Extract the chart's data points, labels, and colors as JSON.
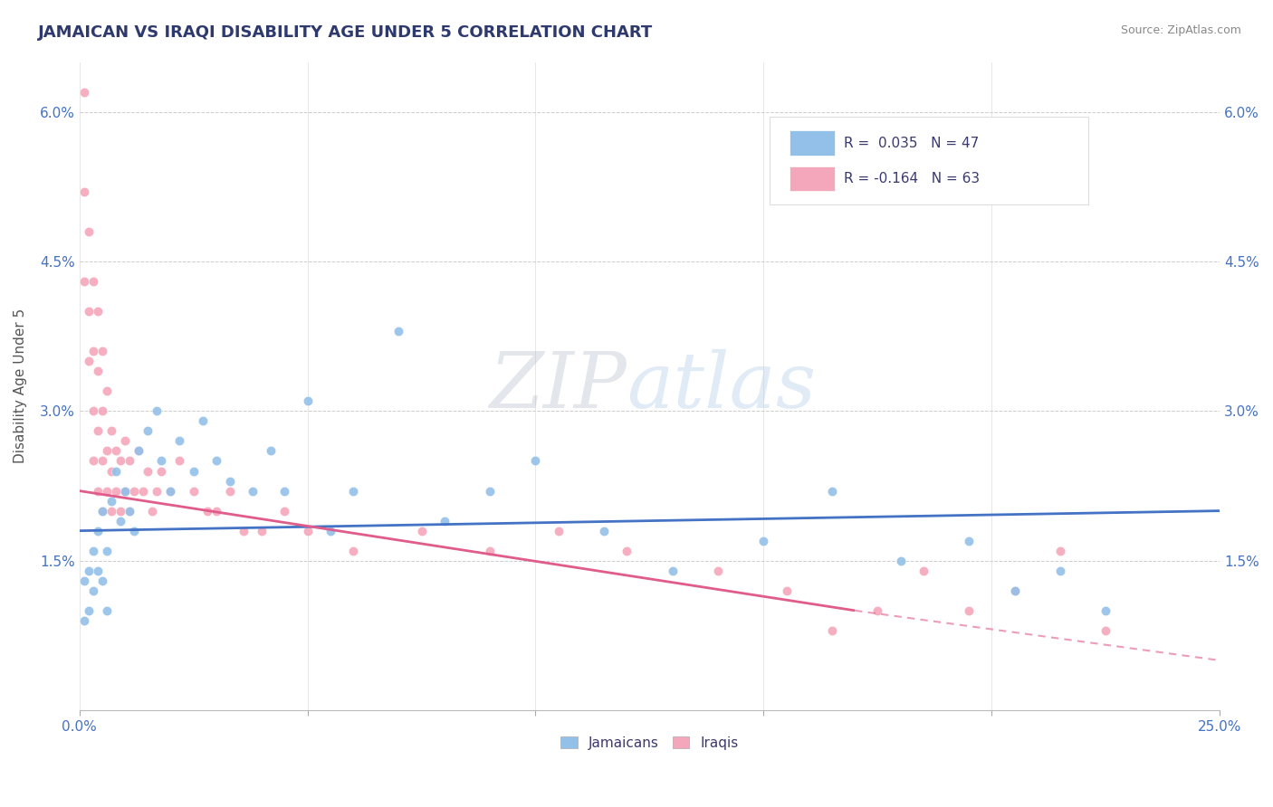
{
  "title": "JAMAICAN VS IRAQI DISABILITY AGE UNDER 5 CORRELATION CHART",
  "source": "Source: ZipAtlas.com",
  "ylabel": "Disability Age Under 5",
  "xmin": 0.0,
  "xmax": 0.25,
  "ymin": 0.0,
  "ymax": 0.065,
  "yticks": [
    0.0,
    0.015,
    0.03,
    0.045,
    0.06
  ],
  "ytick_labels": [
    "",
    "1.5%",
    "3.0%",
    "4.5%",
    "6.0%"
  ],
  "xticks": [
    0.0,
    0.05,
    0.1,
    0.15,
    0.2,
    0.25
  ],
  "legend_r_jamaican": "0.035",
  "legend_n_jamaican": "47",
  "legend_r_iraqi": "-0.164",
  "legend_n_iraqi": "63",
  "jamaican_color": "#92c0e8",
  "iraqi_color": "#f4a6bb",
  "trendline_jamaican_color": "#4472c4",
  "trendline_iraqi_color": "#e05c8a",
  "watermark_zip": "ZIP",
  "watermark_atlas": "atlas",
  "background_color": "#ffffff",
  "jamaicans_x": [
    0.001,
    0.001,
    0.002,
    0.002,
    0.003,
    0.003,
    0.004,
    0.004,
    0.005,
    0.005,
    0.006,
    0.006,
    0.007,
    0.008,
    0.009,
    0.01,
    0.011,
    0.012,
    0.013,
    0.015,
    0.017,
    0.018,
    0.02,
    0.022,
    0.025,
    0.027,
    0.03,
    0.033,
    0.038,
    0.042,
    0.045,
    0.05,
    0.055,
    0.06,
    0.07,
    0.08,
    0.09,
    0.1,
    0.115,
    0.13,
    0.15,
    0.165,
    0.18,
    0.195,
    0.205,
    0.215,
    0.225
  ],
  "jamaicans_y": [
    0.013,
    0.009,
    0.014,
    0.01,
    0.016,
    0.012,
    0.018,
    0.014,
    0.02,
    0.013,
    0.016,
    0.01,
    0.021,
    0.024,
    0.019,
    0.022,
    0.02,
    0.018,
    0.026,
    0.028,
    0.03,
    0.025,
    0.022,
    0.027,
    0.024,
    0.029,
    0.025,
    0.023,
    0.022,
    0.026,
    0.022,
    0.031,
    0.018,
    0.022,
    0.038,
    0.019,
    0.022,
    0.025,
    0.018,
    0.014,
    0.017,
    0.022,
    0.015,
    0.017,
    0.012,
    0.014,
    0.01
  ],
  "iraqis_x": [
    0.001,
    0.001,
    0.001,
    0.002,
    0.002,
    0.002,
    0.003,
    0.003,
    0.003,
    0.003,
    0.004,
    0.004,
    0.004,
    0.004,
    0.005,
    0.005,
    0.005,
    0.005,
    0.006,
    0.006,
    0.006,
    0.007,
    0.007,
    0.007,
    0.008,
    0.008,
    0.009,
    0.009,
    0.01,
    0.01,
    0.011,
    0.011,
    0.012,
    0.013,
    0.014,
    0.015,
    0.016,
    0.017,
    0.018,
    0.02,
    0.022,
    0.025,
    0.028,
    0.03,
    0.033,
    0.036,
    0.04,
    0.045,
    0.05,
    0.06,
    0.075,
    0.09,
    0.105,
    0.12,
    0.14,
    0.155,
    0.165,
    0.175,
    0.185,
    0.195,
    0.205,
    0.215,
    0.225
  ],
  "iraqis_y": [
    0.062,
    0.052,
    0.043,
    0.048,
    0.04,
    0.035,
    0.043,
    0.036,
    0.03,
    0.025,
    0.04,
    0.034,
    0.028,
    0.022,
    0.036,
    0.03,
    0.025,
    0.02,
    0.032,
    0.026,
    0.022,
    0.028,
    0.024,
    0.02,
    0.026,
    0.022,
    0.025,
    0.02,
    0.027,
    0.022,
    0.025,
    0.02,
    0.022,
    0.026,
    0.022,
    0.024,
    0.02,
    0.022,
    0.024,
    0.022,
    0.025,
    0.022,
    0.02,
    0.02,
    0.022,
    0.018,
    0.018,
    0.02,
    0.018,
    0.016,
    0.018,
    0.016,
    0.018,
    0.016,
    0.014,
    0.012,
    0.008,
    0.01,
    0.014,
    0.01,
    0.012,
    0.016,
    0.008
  ],
  "trendline_j_x0": 0.0,
  "trendline_j_x1": 0.25,
  "trendline_j_y0": 0.018,
  "trendline_j_y1": 0.02,
  "trendline_i_x0": 0.0,
  "trendline_i_x1": 0.25,
  "trendline_i_y0": 0.022,
  "trendline_i_y1": 0.005,
  "trendline_i_solid_x1": 0.17,
  "trendline_i_solid_y1": 0.01
}
